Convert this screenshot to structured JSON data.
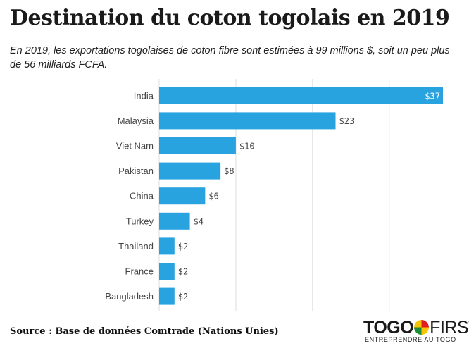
{
  "header": {
    "title": "Destination du coton togolais en 2019",
    "subtitle": "En 2019, les exportations togolaises de coton fibre sont estimées à 99 millions $, soit un peu plus de 56 milliards FCFA."
  },
  "chart_data": {
    "type": "bar",
    "orientation": "horizontal",
    "categories": [
      "India",
      "Malaysia",
      "Viet Nam",
      "Pakistan",
      "China",
      "Turkey",
      "Thailand",
      "France",
      "Bangladesh"
    ],
    "values": [
      37,
      23,
      10,
      8,
      6,
      4,
      2,
      2,
      2
    ],
    "value_labels": [
      "$37",
      "$23",
      "$10",
      "$8",
      "$6",
      "$4",
      "$2",
      "$2",
      "$2"
    ],
    "xlim": [
      0,
      37
    ],
    "gridlines_at": [
      0,
      10,
      20,
      30
    ],
    "bar_color": "#29a3e0",
    "grid": true
  },
  "footer": {
    "source": "Source : Base de données Comtrade (Nations Unies)"
  },
  "logo": {
    "part1": "TOGO",
    "part2": "FIRST",
    "tagline": "ENTREPRENDRE AU TOGO"
  }
}
